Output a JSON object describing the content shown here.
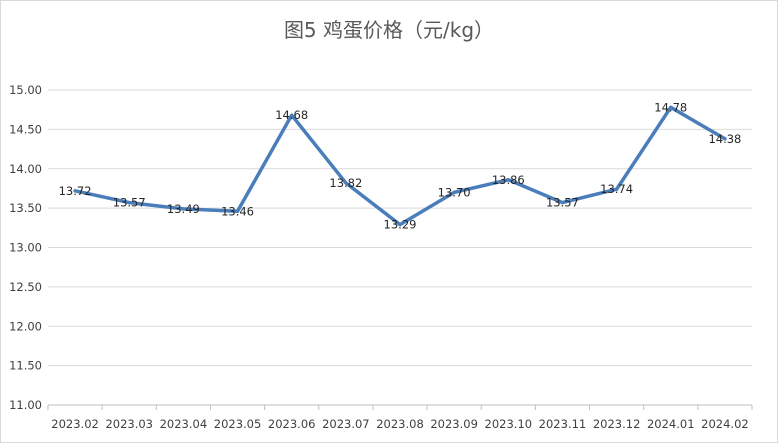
{
  "chart_data": {
    "type": "line",
    "title": "图5 鸡蛋价格（元/kg）",
    "xlabel": "",
    "ylabel": "",
    "categories": [
      "2023.02",
      "2023.03",
      "2023.04",
      "2023.05",
      "2023.06",
      "2023.07",
      "2023.08",
      "2023.09",
      "2023.10",
      "2023.11",
      "2023.12",
      "2024.01",
      "2024.02"
    ],
    "series": [
      {
        "values": [
          13.72,
          13.57,
          13.49,
          13.46,
          14.68,
          13.82,
          13.29,
          13.7,
          13.86,
          13.57,
          13.74,
          14.78,
          14.38
        ],
        "labels": [
          "13.72",
          "13.57",
          "13.49",
          "13.46",
          "14.68",
          "13.82",
          "13.29",
          "13.70",
          "13.86",
          "13.57",
          "13.74",
          "14.78",
          "14.38"
        ]
      }
    ],
    "ylim": [
      11.0,
      15.0
    ],
    "yticks": [
      "11.00",
      "11.50",
      "12.00",
      "12.50",
      "13.00",
      "13.50",
      "14.00",
      "14.50",
      "15.00"
    ],
    "grid": true,
    "legend": "none",
    "colors": {
      "line": "#4a7ebb",
      "grid": "#d9d9d9",
      "axis": "#bfbfbf"
    }
  }
}
